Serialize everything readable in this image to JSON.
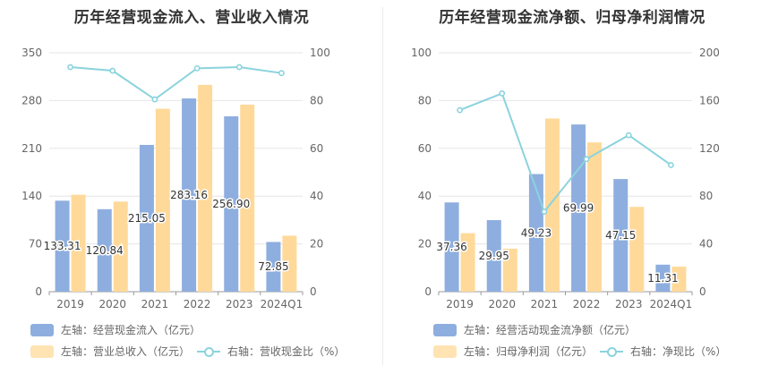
{
  "chart_data": [
    {
      "type": "bar",
      "title": "历年经营现金流入、营业收入情况",
      "categories": [
        "2019",
        "2020",
        "2021",
        "2022",
        "2023",
        "2024Q1"
      ],
      "left_axis": {
        "ticks": [
          "0",
          "70",
          "140",
          "210",
          "280",
          "350"
        ],
        "range": [
          0,
          350
        ]
      },
      "right_axis": {
        "ticks": [
          "0",
          "20",
          "40",
          "60",
          "80",
          "100"
        ],
        "range": [
          0,
          100
        ]
      },
      "series": [
        {
          "name": "左轴：经营现金流入（亿元）",
          "type": "bar",
          "axis": "left",
          "color": "#8eaedf",
          "values": [
            133.31,
            120.84,
            215.05,
            283.16,
            256.9,
            72.85
          ],
          "labels": [
            "133.31",
            "120.84",
            "215.05",
            "283.16",
            "256.90",
            "72.85"
          ]
        },
        {
          "name": "左轴：营业总收入（亿元）",
          "type": "bar",
          "axis": "left",
          "color": "#ffd99a",
          "values": [
            142,
            132,
            268,
            303,
            274,
            82
          ]
        },
        {
          "name": "右轴：营收现金比（%）",
          "type": "line",
          "axis": "right",
          "color": "#8bd3dd",
          "values": [
            94,
            92.5,
            80.5,
            93.5,
            94,
            91.5
          ]
        }
      ]
    },
    {
      "type": "bar",
      "title": "历年经营现金流净额、归母净利润情况",
      "categories": [
        "2019",
        "2020",
        "2021",
        "2022",
        "2023",
        "2024Q1"
      ],
      "left_axis": {
        "ticks": [
          "0",
          "20",
          "40",
          "60",
          "80",
          "100"
        ],
        "range": [
          0,
          100
        ]
      },
      "right_axis": {
        "ticks": [
          "0",
          "40",
          "80",
          "120",
          "160",
          "200"
        ],
        "range": [
          0,
          200
        ]
      },
      "series": [
        {
          "name": "左轴：经营活动现金流净额（亿元）",
          "type": "bar",
          "axis": "left",
          "color": "#8eaedf",
          "values": [
            37.36,
            29.95,
            49.23,
            69.99,
            47.15,
            11.31
          ],
          "labels": [
            "37.36",
            "29.95",
            "49.23",
            "69.99",
            "47.15",
            "11.31"
          ]
        },
        {
          "name": "左轴：归母净利润（亿元）",
          "type": "bar",
          "axis": "left",
          "color": "#ffd99a",
          "values": [
            24.5,
            18,
            72.5,
            62.5,
            35.5,
            10.5
          ]
        },
        {
          "name": "右轴：净现比（%）",
          "type": "line",
          "axis": "right",
          "color": "#8bd3dd",
          "values": [
            152,
            166,
            67,
            111,
            131,
            106
          ]
        }
      ]
    }
  ]
}
